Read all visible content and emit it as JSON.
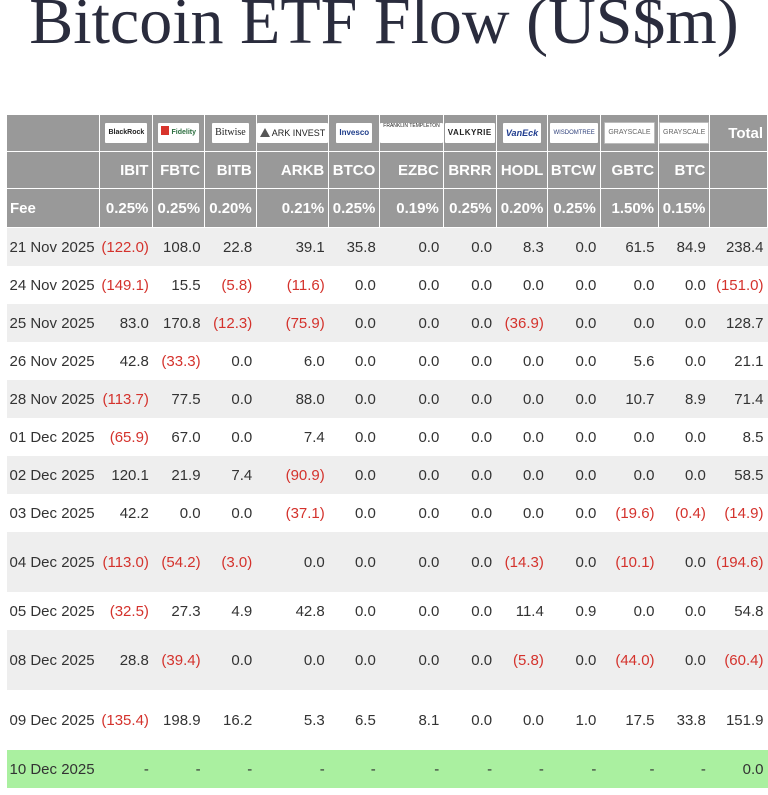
{
  "title": "Bitcoin ETF Flow (US$m)",
  "logos": [
    {
      "name": "blackrock-logo",
      "text": "BlackRock"
    },
    {
      "name": "fidelity-logo",
      "text": "Fidelity"
    },
    {
      "name": "bitwise-logo",
      "text": "Bitwise"
    },
    {
      "name": "ark-logo",
      "text": "ARK INVEST"
    },
    {
      "name": "invesco-logo",
      "text": "Invesco"
    },
    {
      "name": "franklin-logo",
      "text": "FRANKLIN TEMPLETON"
    },
    {
      "name": "valkyrie-logo",
      "text": "VALKYRIE"
    },
    {
      "name": "vaneck-logo",
      "text": "VanEck"
    },
    {
      "name": "wisdomtree-logo",
      "text": "WISDOMTREE"
    },
    {
      "name": "grayscale-logo",
      "text": "GRAYSCALE"
    },
    {
      "name": "grayscale-mini-logo",
      "text": "GRAYSCALE"
    }
  ],
  "total_label": "Total",
  "tickers": [
    "IBIT",
    "FBTC",
    "BITB",
    "ARKB",
    "BTCO",
    "EZBC",
    "BRRR",
    "HODL",
    "BTCW",
    "GBTC",
    "BTC"
  ],
  "fee_label": "Fee",
  "fees": [
    "0.25%",
    "0.25%",
    "0.20%",
    "0.21%",
    "0.25%",
    "0.19%",
    "0.25%",
    "0.20%",
    "0.25%",
    "1.50%",
    "0.15%"
  ],
  "rows": [
    {
      "date": "21 Nov 2025",
      "values": [
        "(122.0)",
        "108.0",
        "22.8",
        "39.1",
        "35.8",
        "0.0",
        "0.0",
        "8.3",
        "0.0",
        "61.5",
        "84.9"
      ],
      "total": "238.4"
    },
    {
      "date": "24 Nov 2025",
      "values": [
        "(149.1)",
        "15.5",
        "(5.8)",
        "(11.6)",
        "0.0",
        "0.0",
        "0.0",
        "0.0",
        "0.0",
        "0.0",
        "0.0"
      ],
      "total": "(151.0)"
    },
    {
      "date": "25 Nov 2025",
      "values": [
        "83.0",
        "170.8",
        "(12.3)",
        "(75.9)",
        "0.0",
        "0.0",
        "0.0",
        "(36.9)",
        "0.0",
        "0.0",
        "0.0"
      ],
      "total": "128.7"
    },
    {
      "date": "26 Nov 2025",
      "values": [
        "42.8",
        "(33.3)",
        "0.0",
        "6.0",
        "0.0",
        "0.0",
        "0.0",
        "0.0",
        "0.0",
        "5.6",
        "0.0"
      ],
      "total": "21.1"
    },
    {
      "date": "28 Nov 2025",
      "values": [
        "(113.7)",
        "77.5",
        "0.0",
        "88.0",
        "0.0",
        "0.0",
        "0.0",
        "0.0",
        "0.0",
        "10.7",
        "8.9"
      ],
      "total": "71.4"
    },
    {
      "date": "01 Dec 2025",
      "values": [
        "(65.9)",
        "67.0",
        "0.0",
        "7.4",
        "0.0",
        "0.0",
        "0.0",
        "0.0",
        "0.0",
        "0.0",
        "0.0"
      ],
      "total": "8.5"
    },
    {
      "date": "02 Dec 2025",
      "values": [
        "120.1",
        "21.9",
        "7.4",
        "(90.9)",
        "0.0",
        "0.0",
        "0.0",
        "0.0",
        "0.0",
        "0.0",
        "0.0"
      ],
      "total": "58.5"
    },
    {
      "date": "03 Dec 2025",
      "values": [
        "42.2",
        "0.0",
        "0.0",
        "(37.1)",
        "0.0",
        "0.0",
        "0.0",
        "0.0",
        "0.0",
        "(19.6)",
        "(0.4)"
      ],
      "total": "(14.9)"
    },
    {
      "date": "04 Dec 2025",
      "values": [
        "(113.0)",
        "(54.2)",
        "(3.0)",
        "0.0",
        "0.0",
        "0.0",
        "0.0",
        "(14.3)",
        "0.0",
        "(10.1)",
        "0.0"
      ],
      "total": "(194.6)"
    },
    {
      "date": "05 Dec 2025",
      "values": [
        "(32.5)",
        "27.3",
        "4.9",
        "42.8",
        "0.0",
        "0.0",
        "0.0",
        "11.4",
        "0.9",
        "0.0",
        "0.0"
      ],
      "total": "54.8"
    },
    {
      "date": "08 Dec 2025",
      "values": [
        "28.8",
        "(39.4)",
        "0.0",
        "0.0",
        "0.0",
        "0.0",
        "0.0",
        "(5.8)",
        "0.0",
        "(44.0)",
        "0.0"
      ],
      "total": "(60.4)"
    },
    {
      "date": "09 Dec 2025",
      "values": [
        "(135.4)",
        "198.9",
        "16.2",
        "5.3",
        "6.5",
        "8.1",
        "0.0",
        "0.0",
        "1.0",
        "17.5",
        "33.8"
      ],
      "total": "151.9"
    },
    {
      "date": "10 Dec 2025",
      "values": [
        "-",
        "-",
        "-",
        "-",
        "-",
        "-",
        "-",
        "-",
        "-",
        "-",
        "-"
      ],
      "total": "0.0"
    }
  ],
  "colors": {
    "header_bg": "#999999",
    "negative": "#d4322c",
    "highlight_row": "#aaf0a0",
    "alt_row": "#eeeeee",
    "title": "#2a2c3d"
  }
}
